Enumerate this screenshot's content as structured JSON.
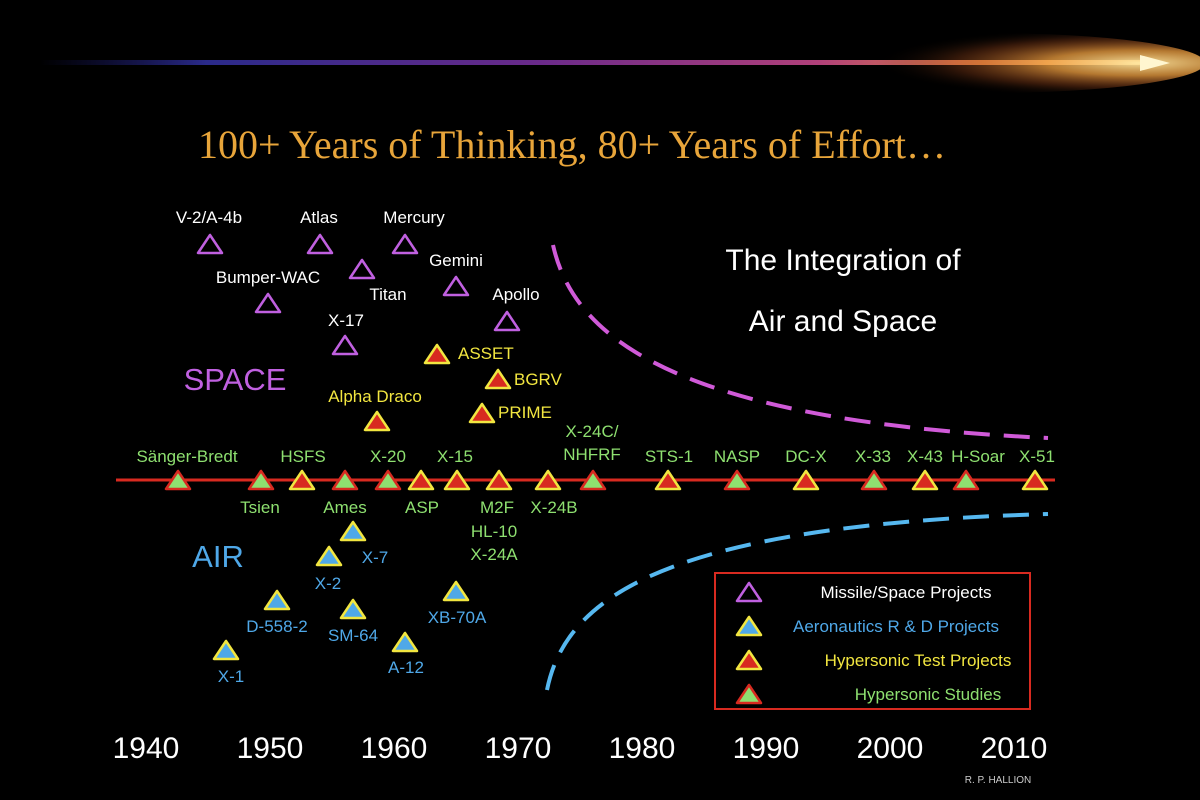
{
  "title": "100+ Years of Thinking, 80+ Years of Effort…",
  "subtitle_lines": [
    "The Integration of",
    "Air and Space"
  ],
  "region_labels": {
    "space": "SPACE",
    "air": "AIR"
  },
  "credit": "R. P. HALLION",
  "colors": {
    "space": "#c060e0",
    "aero": "#4fa8e8",
    "test": "#f2e640",
    "study": "#8ee070",
    "title": "#e8a53a",
    "timeline": "#d82a20",
    "legend_border": "#d82a20",
    "space_curve": "#d05ad8",
    "air_curve": "#56b8f0"
  },
  "decades": [
    "1940",
    "1950",
    "1960",
    "1970",
    "1980",
    "1990",
    "2000",
    "2010"
  ],
  "legend": [
    {
      "type": "space",
      "label": "Missile/Space Projects"
    },
    {
      "type": "aero",
      "label": "Aeronautics R & D Projects"
    },
    {
      "type": "test",
      "label": "Hypersonic Test Projects"
    },
    {
      "type": "study",
      "label": "Hypersonic Studies"
    }
  ],
  "space_projects": [
    {
      "label": "V-2/A-4b",
      "year": 1946
    },
    {
      "label": "Atlas",
      "year": 1955
    },
    {
      "label": "Mercury",
      "year": 1961
    },
    {
      "label": "Bumper-WAC",
      "year": 1950
    },
    {
      "label": "Titan",
      "year": 1958
    },
    {
      "label": "Gemini",
      "year": 1965
    },
    {
      "label": "X-17",
      "year": 1957
    },
    {
      "label": "Apollo",
      "year": 1969
    }
  ],
  "test_projects_space": [
    {
      "label": "ASSET",
      "year": 1963
    },
    {
      "label": "BGRV",
      "year": 1969
    },
    {
      "label": "PRIME",
      "year": 1967
    },
    {
      "label": "Alpha Draco",
      "year": 1958
    }
  ],
  "timeline_labels_above": [
    "Sänger-Bredt",
    "HSFS",
    "X-20",
    "X-15",
    "X-24C/",
    "NHFRF",
    "STS-1",
    "NASP",
    "DC-X",
    "X-33",
    "X-43",
    "H-Soar",
    "X-51"
  ],
  "timeline_labels_below": [
    "Tsien",
    "Ames",
    "ASP",
    "M2F",
    "HL-10",
    "X-24A",
    "X-24B"
  ],
  "aero_projects": [
    {
      "label": "X-1",
      "year": 1947
    },
    {
      "label": "D-558-2",
      "year": 1951
    },
    {
      "label": "X-2",
      "year": 1955
    },
    {
      "label": "X-7",
      "year": 1957
    },
    {
      "label": "SM-64",
      "year": 1957
    },
    {
      "label": "A-12",
      "year": 1962
    },
    {
      "label": "XB-70A",
      "year": 1965
    }
  ]
}
